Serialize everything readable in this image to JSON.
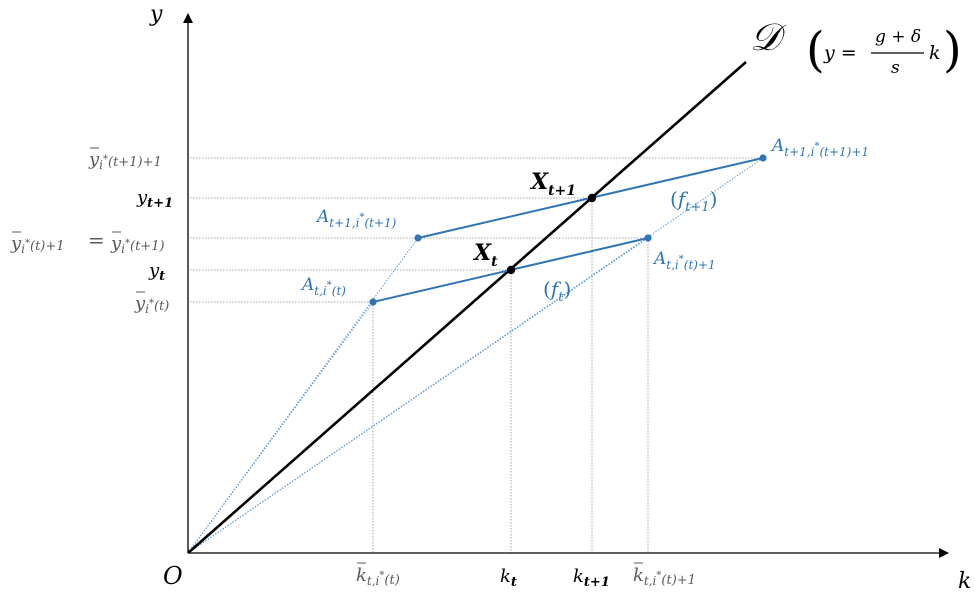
{
  "colors": {
    "axis": "#000000",
    "line_d": "#000000",
    "segment": "#2e75b6",
    "guide_blue": "#5b9bd5",
    "guide_gray": "#a6a6a6",
    "label_gray": "#595959",
    "label_blue": "#2e75b6"
  },
  "axes": {
    "y_label": "y",
    "x_label": "k",
    "origin_label": "O"
  },
  "line_d": {
    "symbol": "𝒟",
    "equation_lhs": "y =",
    "fraction_numerator": "g + δ",
    "fraction_denominator": "s",
    "equation_rhs": "k",
    "paren_open": "(",
    "paren_close": ")"
  },
  "points": {
    "X_t": {
      "base": "X",
      "sub": "t"
    },
    "X_t1": {
      "base": "X",
      "sub": "t+1"
    },
    "A_t_i": {
      "base": "A",
      "sub": "t,i",
      "sup": "*",
      "tail": "(t)"
    },
    "A_t_i1": {
      "base": "A",
      "sub": "t,i",
      "sup": "*",
      "tail": "(t)+1"
    },
    "A_t1_i": {
      "base": "A",
      "sub": "t+1,i",
      "sup": "*",
      "tail": "(t+1)"
    },
    "A_t1_i1": {
      "base": "A",
      "sub": "t+1,i",
      "sup": "*",
      "tail": "(t+1)+1"
    }
  },
  "curves": {
    "f_t": {
      "base": "f",
      "sub": "t"
    },
    "f_t1": {
      "base": "f",
      "sub": "t+1"
    }
  },
  "y_ticks": {
    "ybar_top": {
      "base": "y",
      "sub": "i",
      "sup": "*",
      "tail": "(t+1)+1"
    },
    "y_t1": {
      "base": "y",
      "sub": "t+1"
    },
    "ybar_mid_left": {
      "base": "y",
      "sub": "i",
      "sup": "*",
      "tail": "(t)+1"
    },
    "ybar_mid_eq": "=",
    "ybar_mid_right": {
      "base": "y",
      "sub": "i",
      "sup": "*",
      "tail": "(t+1)"
    },
    "y_t": {
      "base": "y",
      "sub": "t"
    },
    "ybar_low": {
      "base": "y",
      "sub": "i",
      "sup": "*",
      "tail": "(t)"
    }
  },
  "x_ticks": {
    "kbar_left": {
      "base": "k",
      "sub": "t,i",
      "sup": "*",
      "tail": "(t)"
    },
    "k_t": {
      "base": "k",
      "sub": "t"
    },
    "k_t1": {
      "base": "k",
      "sub": "t+1"
    },
    "kbar_right": {
      "base": "k",
      "sub": "t,i",
      "sup": "*",
      "tail": "(t)+1"
    }
  }
}
